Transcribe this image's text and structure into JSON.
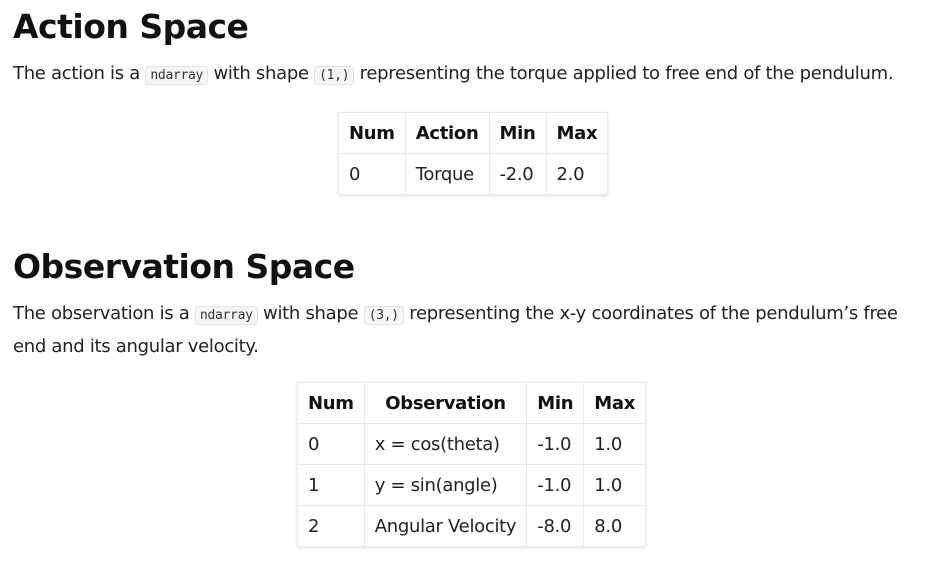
{
  "action_section": {
    "heading": "Action Space",
    "paragraph": {
      "prefix": "The action is a ",
      "code_type": "ndarray",
      "middle": " with shape ",
      "code_shape": "(1,)",
      "suffix": " representing the torque applied to free end of the pendulum."
    },
    "table": {
      "headers": [
        "Num",
        "Action",
        "Min",
        "Max"
      ],
      "rows": [
        [
          "0",
          "Torque",
          "-2.0",
          "2.0"
        ]
      ]
    }
  },
  "observation_section": {
    "heading": "Observation Space",
    "paragraph": {
      "prefix": "The observation is a ",
      "code_type": "ndarray",
      "middle": " with shape ",
      "code_shape": "(3,)",
      "suffix": " representing the x-y coordinates of the pendulum’s free end and its angular velocity."
    },
    "table": {
      "headers": [
        "Num",
        "Observation",
        "Min",
        "Max"
      ],
      "rows": [
        [
          "0",
          "x = cos(theta)",
          "-1.0",
          "1.0"
        ],
        [
          "1",
          "y = sin(angle)",
          "-1.0",
          "1.0"
        ],
        [
          "2",
          "Angular Velocity",
          "-8.0",
          "8.0"
        ]
      ]
    }
  }
}
